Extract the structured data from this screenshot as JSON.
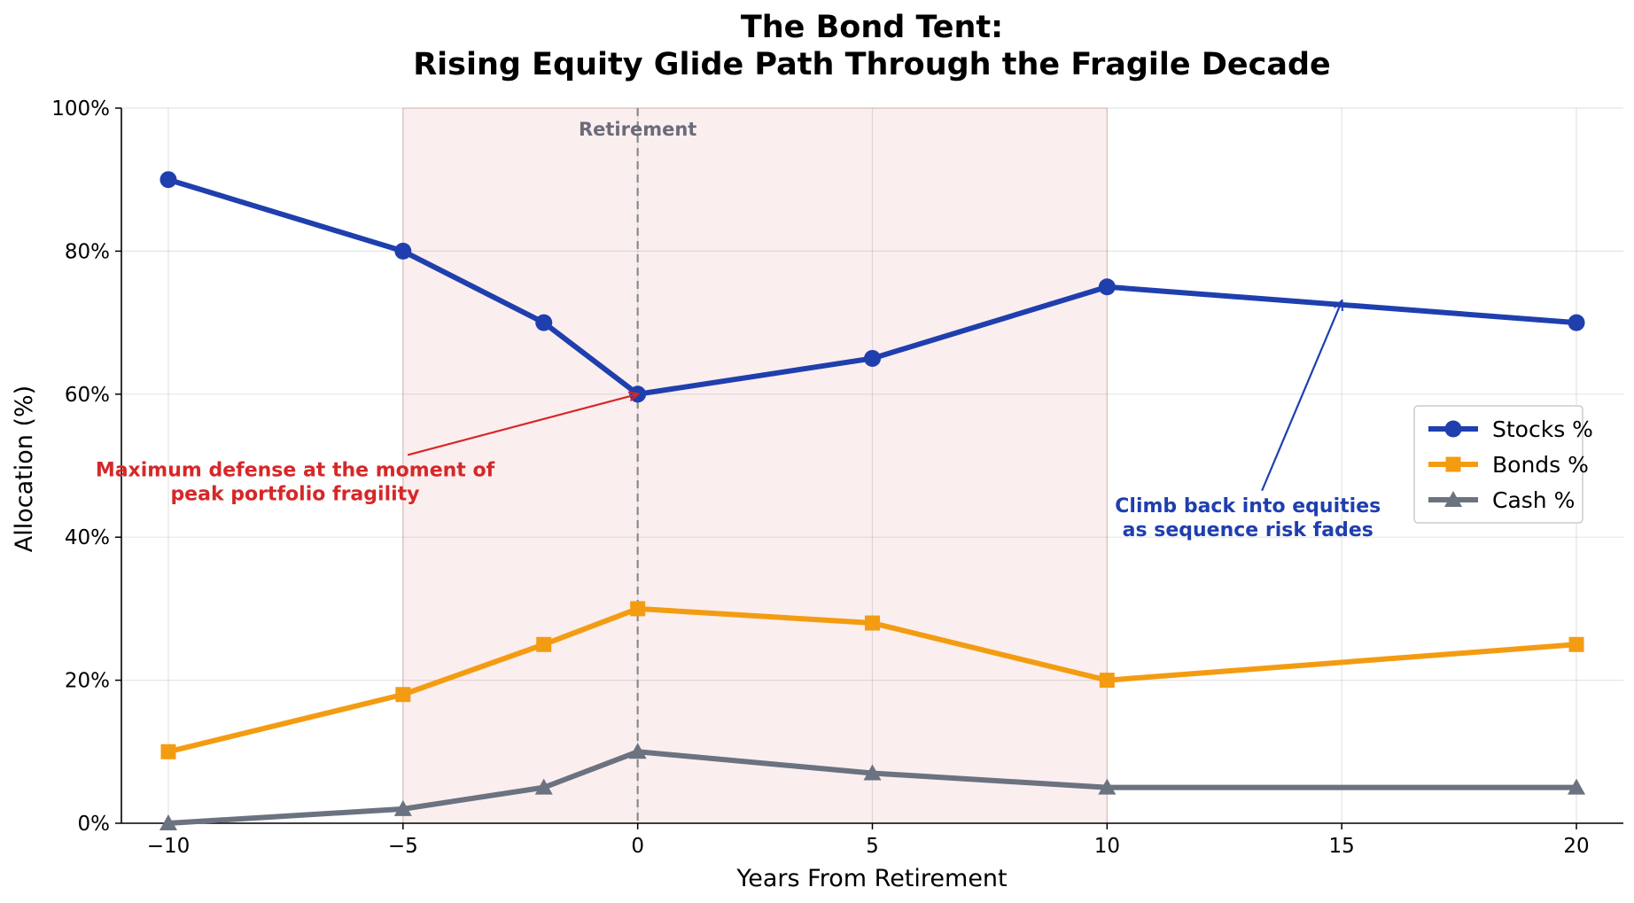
{
  "chart_data": {
    "type": "line",
    "title_line1": "The Bond Tent:",
    "title_line2": "Rising Equity Glide Path Through the Fragile Decade",
    "xlabel": "Years From Retirement",
    "ylabel": "Allocation (%)",
    "xlim": [
      -11,
      21
    ],
    "ylim": [
      0,
      100
    ],
    "x_ticks": [
      -10,
      -5,
      0,
      5,
      10,
      15,
      20
    ],
    "x_tick_labels": [
      "−10",
      "−5",
      "0",
      "5",
      "10",
      "15",
      "20"
    ],
    "y_ticks": [
      0,
      20,
      40,
      60,
      80,
      100
    ],
    "y_tick_labels": [
      "0%",
      "20%",
      "40%",
      "60%",
      "80%",
      "100%"
    ],
    "grid": true,
    "legend_position": "center-right",
    "x": [
      -10,
      -5,
      -2,
      0,
      5,
      10,
      20
    ],
    "series": [
      {
        "name": "Stocks %",
        "values": [
          90,
          80,
          70,
          60,
          65,
          75,
          70
        ],
        "color": "#1f3fae",
        "marker": "circle"
      },
      {
        "name": "Bonds %",
        "values": [
          10,
          18,
          25,
          30,
          28,
          20,
          25
        ],
        "color": "#f39c12",
        "marker": "square"
      },
      {
        "name": "Cash %",
        "values": [
          0,
          2,
          5,
          10,
          7,
          5,
          5
        ],
        "color": "#6b7280",
        "marker": "triangle"
      }
    ],
    "shaded_region": {
      "x_start": -5,
      "x_end": 10,
      "color": "#fbeeee"
    },
    "vertical_line": {
      "x": 0,
      "label": "Retirement",
      "color": "#8a8a8a"
    },
    "annotations": [
      {
        "text_lines": [
          "Maximum defense at the moment of",
          "peak portfolio fragility"
        ],
        "color": "#d62728",
        "text_x": -7.3,
        "text_y": 48.5,
        "arrow_from": [
          -4.9,
          51.5
        ],
        "arrow_to": [
          0,
          60
        ]
      },
      {
        "text_lines": [
          "Climb back into equities",
          "as sequence risk fades"
        ],
        "color": "#1f3fae",
        "text_x": 13,
        "text_y": 43.5,
        "arrow_from": [
          13.3,
          46.5
        ],
        "arrow_to": [
          15,
          73
        ]
      }
    ]
  }
}
